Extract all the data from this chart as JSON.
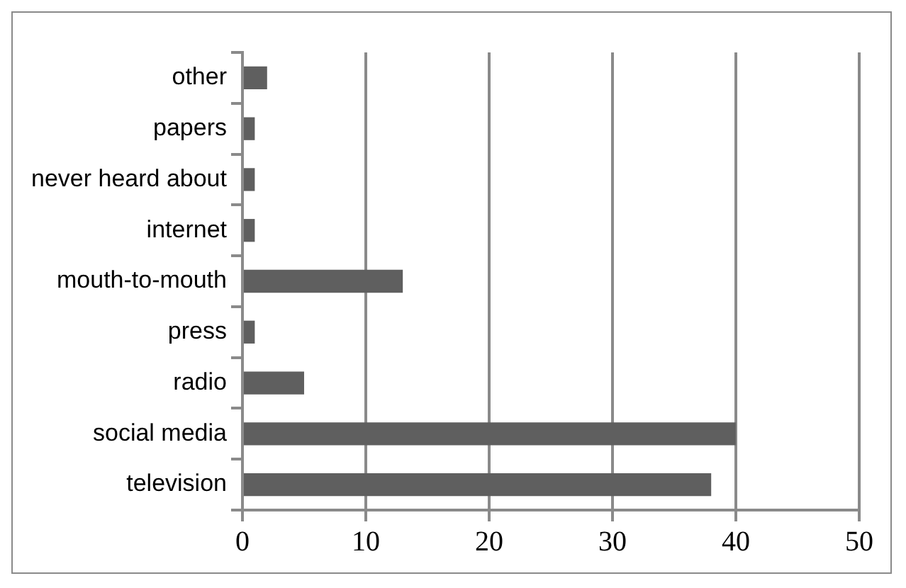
{
  "chart_data": {
    "type": "bar",
    "orientation": "horizontal",
    "categories": [
      "other",
      "papers",
      "never heard about",
      "internet",
      "mouth-to-mouth",
      "press",
      "radio",
      "social media",
      "television"
    ],
    "values": [
      2,
      1,
      1,
      1,
      13,
      1,
      5,
      40,
      38
    ],
    "color": "#5f5f5f",
    "xlim": [
      0,
      50
    ],
    "xticks": [
      0,
      10,
      20,
      30,
      40,
      50
    ],
    "grid": "x"
  }
}
